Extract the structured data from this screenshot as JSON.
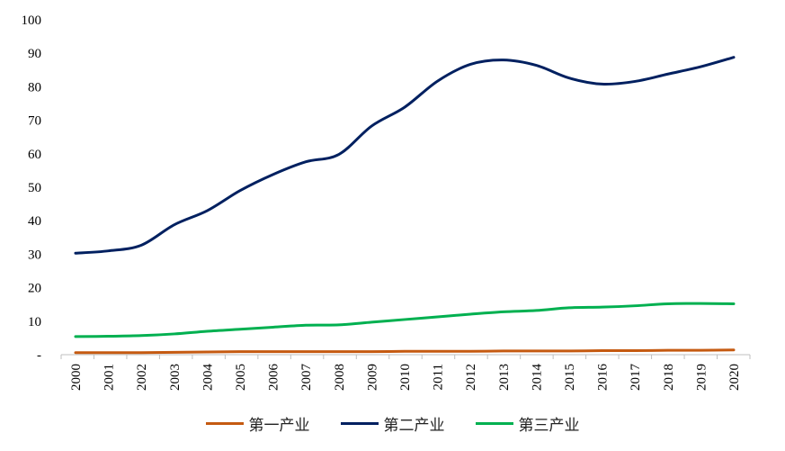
{
  "chart_data": {
    "type": "line",
    "title": "",
    "xlabel": "",
    "ylabel": "",
    "ylim": [
      0,
      100
    ],
    "yticks": [
      {
        "value": 0,
        "label": "-"
      },
      {
        "value": 10,
        "label": "10"
      },
      {
        "value": 20,
        "label": "20"
      },
      {
        "value": 30,
        "label": "30"
      },
      {
        "value": 40,
        "label": "40"
      },
      {
        "value": 50,
        "label": "50"
      },
      {
        "value": 60,
        "label": "60"
      },
      {
        "value": 70,
        "label": "70"
      },
      {
        "value": 80,
        "label": "80"
      },
      {
        "value": 90,
        "label": "90"
      },
      {
        "value": 100,
        "label": "100"
      }
    ],
    "categories": [
      "2000",
      "2001",
      "2002",
      "2003",
      "2004",
      "2005",
      "2006",
      "2007",
      "2008",
      "2009",
      "2010",
      "2011",
      "2012",
      "2013",
      "2014",
      "2015",
      "2016",
      "2017",
      "2018",
      "2019",
      "2020"
    ],
    "series": [
      {
        "name": "第一产业",
        "color": "#C55A11",
        "values": [
          0.6,
          0.6,
          0.6,
          0.7,
          0.8,
          0.9,
          0.9,
          0.9,
          0.9,
          0.9,
          1.0,
          1.0,
          1.0,
          1.1,
          1.1,
          1.1,
          1.2,
          1.2,
          1.3,
          1.3,
          1.4
        ]
      },
      {
        "name": "第二产业",
        "color": "#002060",
        "values": [
          30.3,
          31.0,
          32.7,
          38.8,
          43.0,
          49.0,
          53.8,
          57.6,
          59.8,
          68.3,
          73.9,
          81.7,
          86.7,
          88.0,
          86.4,
          82.6,
          80.8,
          81.6,
          83.8,
          86.0,
          88.8
        ]
      },
      {
        "name": "第三产业",
        "color": "#00B050",
        "values": [
          5.4,
          5.5,
          5.7,
          6.2,
          7.0,
          7.6,
          8.2,
          8.8,
          8.9,
          9.7,
          10.5,
          11.3,
          12.1,
          12.8,
          13.2,
          14.0,
          14.2,
          14.6,
          15.2,
          15.3,
          15.2
        ]
      }
    ],
    "legend_position": "bottom",
    "grid": false
  }
}
